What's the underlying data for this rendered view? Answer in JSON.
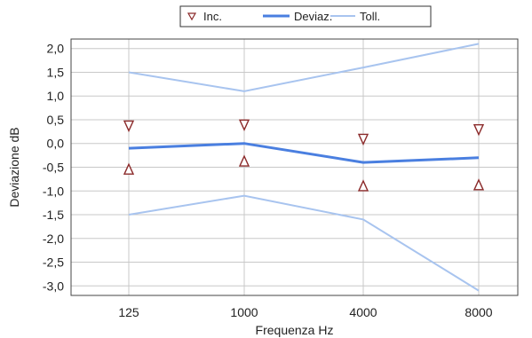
{
  "chart_data": {
    "type": "line",
    "xlabel": "Frequenza Hz",
    "ylabel": "Deviazione dB",
    "categories": [
      "125",
      "1000",
      "4000",
      "8000"
    ],
    "ylim": [
      -3.2,
      2.2
    ],
    "y_ticks": [
      "2,0",
      "1,5",
      "1,0",
      "0,5",
      "0,0",
      "-0,5",
      "-1,0",
      "-1,5",
      "-2,0",
      "-2,5",
      "-3,0"
    ],
    "y_tick_values": [
      2.0,
      1.5,
      1.0,
      0.5,
      0.0,
      -0.5,
      -1.0,
      -1.5,
      -2.0,
      -2.5,
      -3.0
    ],
    "grid": true,
    "legend_position": "top-center",
    "series": [
      {
        "name": "Deviaz.",
        "kind": "line",
        "color": "#4a7fe0",
        "values": [
          -0.1,
          0.0,
          -0.4,
          -0.3
        ]
      },
      {
        "name": "Toll.",
        "kind": "line",
        "color": "#a8c4ef",
        "upper": [
          1.5,
          1.1,
          1.6,
          2.1
        ],
        "lower": [
          -1.5,
          -1.1,
          -1.6,
          -3.1
        ]
      },
      {
        "name": "Inc.",
        "kind": "markers",
        "color": "#8b2a2a",
        "upper_values": [
          0.38,
          0.4,
          0.1,
          0.3
        ],
        "lower_values": [
          -0.55,
          -0.38,
          -0.9,
          -0.88
        ],
        "upper_marker": "triangle-down",
        "lower_marker": "triangle-up"
      }
    ]
  }
}
